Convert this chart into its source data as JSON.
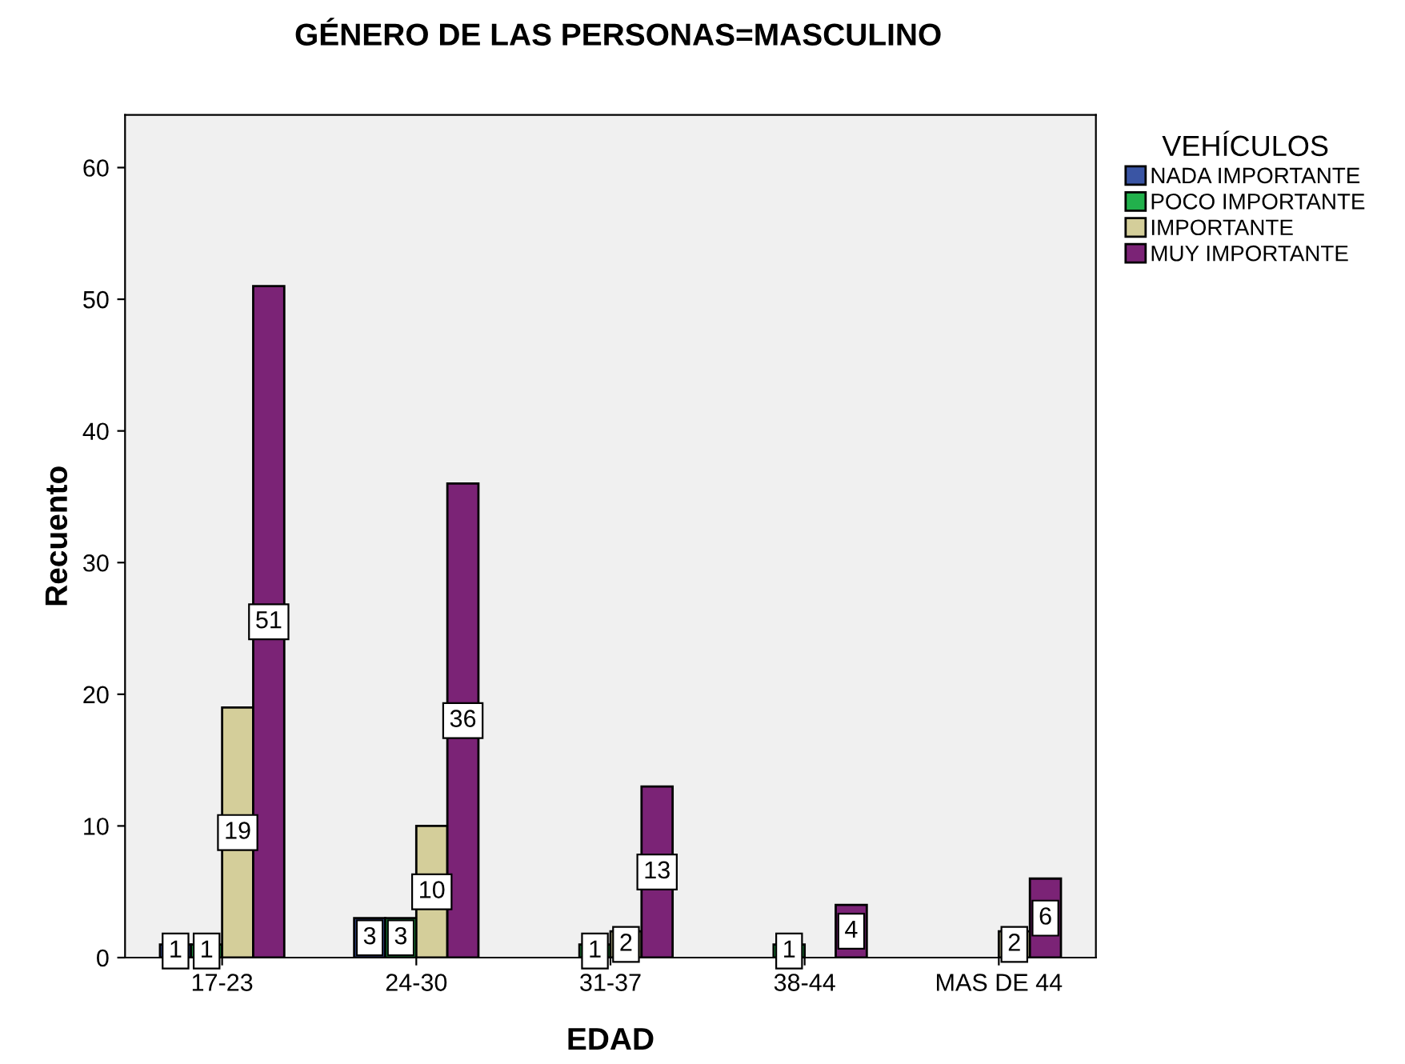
{
  "chart_data": {
    "type": "bar",
    "title": "GÉNERO DE LAS PERSONAS=MASCULINO",
    "xlabel": "EDAD",
    "ylabel": "Recuento",
    "legend_title": "VEHÍCULOS",
    "categories": [
      "17-23",
      "24-30",
      "31-37",
      "38-44",
      "MAS DE 44"
    ],
    "series": [
      {
        "name": "NADA IMPORTANTE",
        "color": "#3a55a4",
        "values": [
          1,
          3,
          null,
          null,
          null
        ]
      },
      {
        "name": "POCO IMPORTANTE",
        "color": "#22b14c",
        "values": [
          1,
          3,
          1,
          1,
          null
        ]
      },
      {
        "name": "IMPORTANTE",
        "color": "#d4ce9a",
        "values": [
          19,
          10,
          2,
          null,
          2
        ]
      },
      {
        "name": "MUY IMPORTANTE",
        "color": "#7b2376",
        "values": [
          51,
          36,
          13,
          4,
          6
        ]
      }
    ],
    "ylim": [
      0,
      64
    ],
    "yticks": [
      0,
      10,
      20,
      30,
      40,
      50,
      60
    ],
    "grid": false,
    "legend": "top right",
    "data_labels": true
  }
}
